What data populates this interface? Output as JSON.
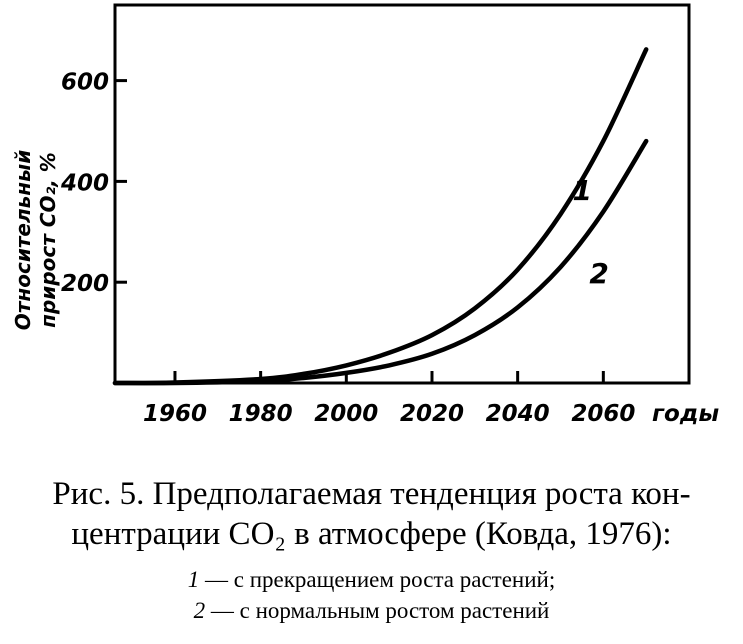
{
  "chart_data": {
    "type": "line",
    "xlabel": "годы",
    "ylabel_line1": "Относительный",
    "ylabel_line2": "прирост CO₂, %",
    "xlim": [
      1946,
      2080
    ],
    "ylim": [
      0,
      750
    ],
    "x_ticks": [
      1960,
      1980,
      2000,
      2020,
      2040,
      2060
    ],
    "y_ticks": [
      200,
      400,
      600
    ],
    "grid": false,
    "series": [
      {
        "name": "1",
        "x": [
          1946,
          1960,
          1980,
          1990,
          2000,
          2010,
          2020,
          2030,
          2040,
          2050,
          2060,
          2070
        ],
        "y": [
          0,
          1,
          8,
          18,
          35,
          60,
          95,
          148,
          225,
          335,
          480,
          662
        ]
      },
      {
        "name": "2",
        "x": [
          1946,
          1960,
          1980,
          1990,
          2000,
          2010,
          2020,
          2030,
          2040,
          2050,
          2060,
          2070
        ],
        "y": [
          0,
          0,
          4,
          10,
          20,
          35,
          58,
          95,
          150,
          230,
          340,
          480
        ]
      }
    ]
  },
  "caption": {
    "line1": "Рис. 5. Предполагаемая тенденция роста кон-",
    "line2": "центрации СО₂ в атмосфере (Ковда, 1976):",
    "legend1_num": "1",
    "legend1_text": " — с прекращением роста растений;",
    "legend2_num": "2",
    "legend2_text": " — с нормальным ростом растений"
  }
}
